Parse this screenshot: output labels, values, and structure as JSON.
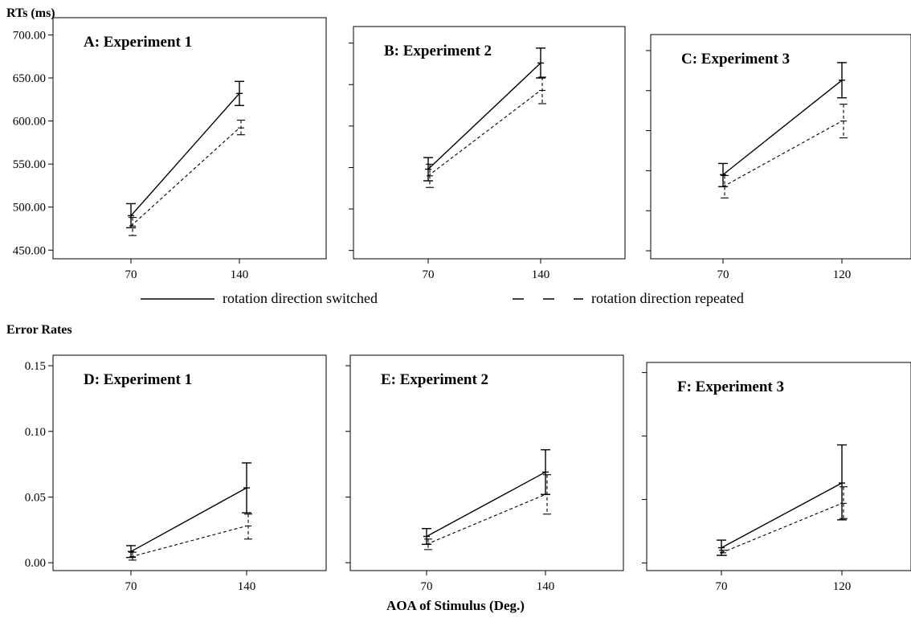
{
  "section_labels": {
    "rt": "RTs (ms)",
    "error": "Error Rates"
  },
  "xlabel": "AOA of Stimulus (Deg.)",
  "legend": {
    "switched": "rotation direction switched",
    "repeated": "rotation direction repeated"
  },
  "chart_data": [
    {
      "type": "line",
      "panel": "A",
      "title": "A: Experiment 1",
      "categories": [
        "70",
        "140"
      ],
      "ylim": [
        440,
        720
      ],
      "yticks": [
        "450.00",
        "500.00",
        "550.00",
        "600.00",
        "650.00",
        "700.00"
      ],
      "yticklabels_shown": true,
      "series": [
        {
          "name": "rotation direction switched",
          "style": "solid",
          "values": [
            490,
            632
          ],
          "err_low": [
            476,
            618
          ],
          "err_high": [
            504,
            646
          ]
        },
        {
          "name": "rotation direction repeated",
          "style": "dashed",
          "values": [
            478,
            592
          ],
          "err_low": [
            467,
            584
          ],
          "err_high": [
            488,
            601
          ]
        }
      ]
    },
    {
      "type": "line",
      "panel": "B",
      "title": "B: Experiment 2",
      "categories": [
        "70",
        "140"
      ],
      "ylim": [
        440,
        720
      ],
      "yticks": [
        "450.00",
        "500.00",
        "550.00",
        "600.00",
        "650.00",
        "700.00"
      ],
      "yticklabels_shown": false,
      "series": [
        {
          "name": "rotation direction switched",
          "style": "solid",
          "values": [
            548,
            676
          ],
          "err_low": [
            534,
            658
          ],
          "err_high": [
            562,
            694
          ]
        },
        {
          "name": "rotation direction repeated",
          "style": "dashed",
          "values": [
            540,
            643
          ],
          "err_low": [
            526,
            627
          ],
          "err_high": [
            554,
            659
          ]
        }
      ]
    },
    {
      "type": "line",
      "panel": "C",
      "title": "C: Experiment 3",
      "categories": [
        "70",
        "120"
      ],
      "ylim": [
        440,
        720
      ],
      "yticks": [
        "450.00",
        "500.00",
        "550.00",
        "600.00",
        "650.00",
        "700.00"
      ],
      "yticklabels_shown": false,
      "series": [
        {
          "name": "rotation direction switched",
          "style": "solid",
          "values": [
            545,
            663
          ],
          "err_low": [
            530,
            641
          ],
          "err_high": [
            559,
            685
          ]
        },
        {
          "name": "rotation direction repeated",
          "style": "dashed",
          "values": [
            530,
            612
          ],
          "err_low": [
            516,
            591
          ],
          "err_high": [
            544,
            633
          ]
        }
      ]
    },
    {
      "type": "line",
      "panel": "D",
      "title": "D: Experiment 1",
      "categories": [
        "70",
        "140"
      ],
      "ylim": [
        -0.006,
        0.158
      ],
      "yticks": [
        "0.00",
        "0.05",
        "0.10",
        "0.15"
      ],
      "yticklabels_shown": true,
      "series": [
        {
          "name": "rotation direction switched",
          "style": "solid",
          "values": [
            0.0085,
            0.057
          ],
          "err_low": [
            0.004,
            0.038
          ],
          "err_high": [
            0.013,
            0.076
          ]
        },
        {
          "name": "rotation direction repeated",
          "style": "dashed",
          "values": [
            0.0045,
            0.028
          ],
          "err_low": [
            0.002,
            0.018
          ],
          "err_high": [
            0.008,
            0.037
          ]
        }
      ]
    },
    {
      "type": "line",
      "panel": "E",
      "title": "E: Experiment 2",
      "categories": [
        "70",
        "140"
      ],
      "ylim": [
        -0.006,
        0.158
      ],
      "yticks": [
        "0.00",
        "0.05",
        "0.10",
        "0.15"
      ],
      "yticklabels_shown": false,
      "series": [
        {
          "name": "rotation direction switched",
          "style": "solid",
          "values": [
            0.02,
            0.069
          ],
          "err_low": [
            0.014,
            0.052
          ],
          "err_high": [
            0.026,
            0.086
          ]
        },
        {
          "name": "rotation direction repeated",
          "style": "dashed",
          "values": [
            0.014,
            0.052
          ],
          "err_low": [
            0.01,
            0.037
          ],
          "err_high": [
            0.018,
            0.067
          ]
        }
      ]
    },
    {
      "type": "line",
      "panel": "F",
      "title": "F: Experiment 3",
      "categories": [
        "70",
        "120"
      ],
      "ylim": [
        -0.006,
        0.158
      ],
      "yticks": [
        "0.00",
        "0.05",
        "0.10",
        "0.15"
      ],
      "yticklabels_shown": false,
      "series": [
        {
          "name": "rotation direction switched",
          "style": "solid",
          "values": [
            0.012,
            0.063
          ],
          "err_low": [
            0.006,
            0.034
          ],
          "err_high": [
            0.018,
            0.093
          ]
        },
        {
          "name": "rotation direction repeated",
          "style": "dashed",
          "values": [
            0.008,
            0.047
          ],
          "err_low": [
            0.006,
            0.035
          ],
          "err_high": [
            0.01,
            0.06
          ]
        }
      ]
    }
  ]
}
